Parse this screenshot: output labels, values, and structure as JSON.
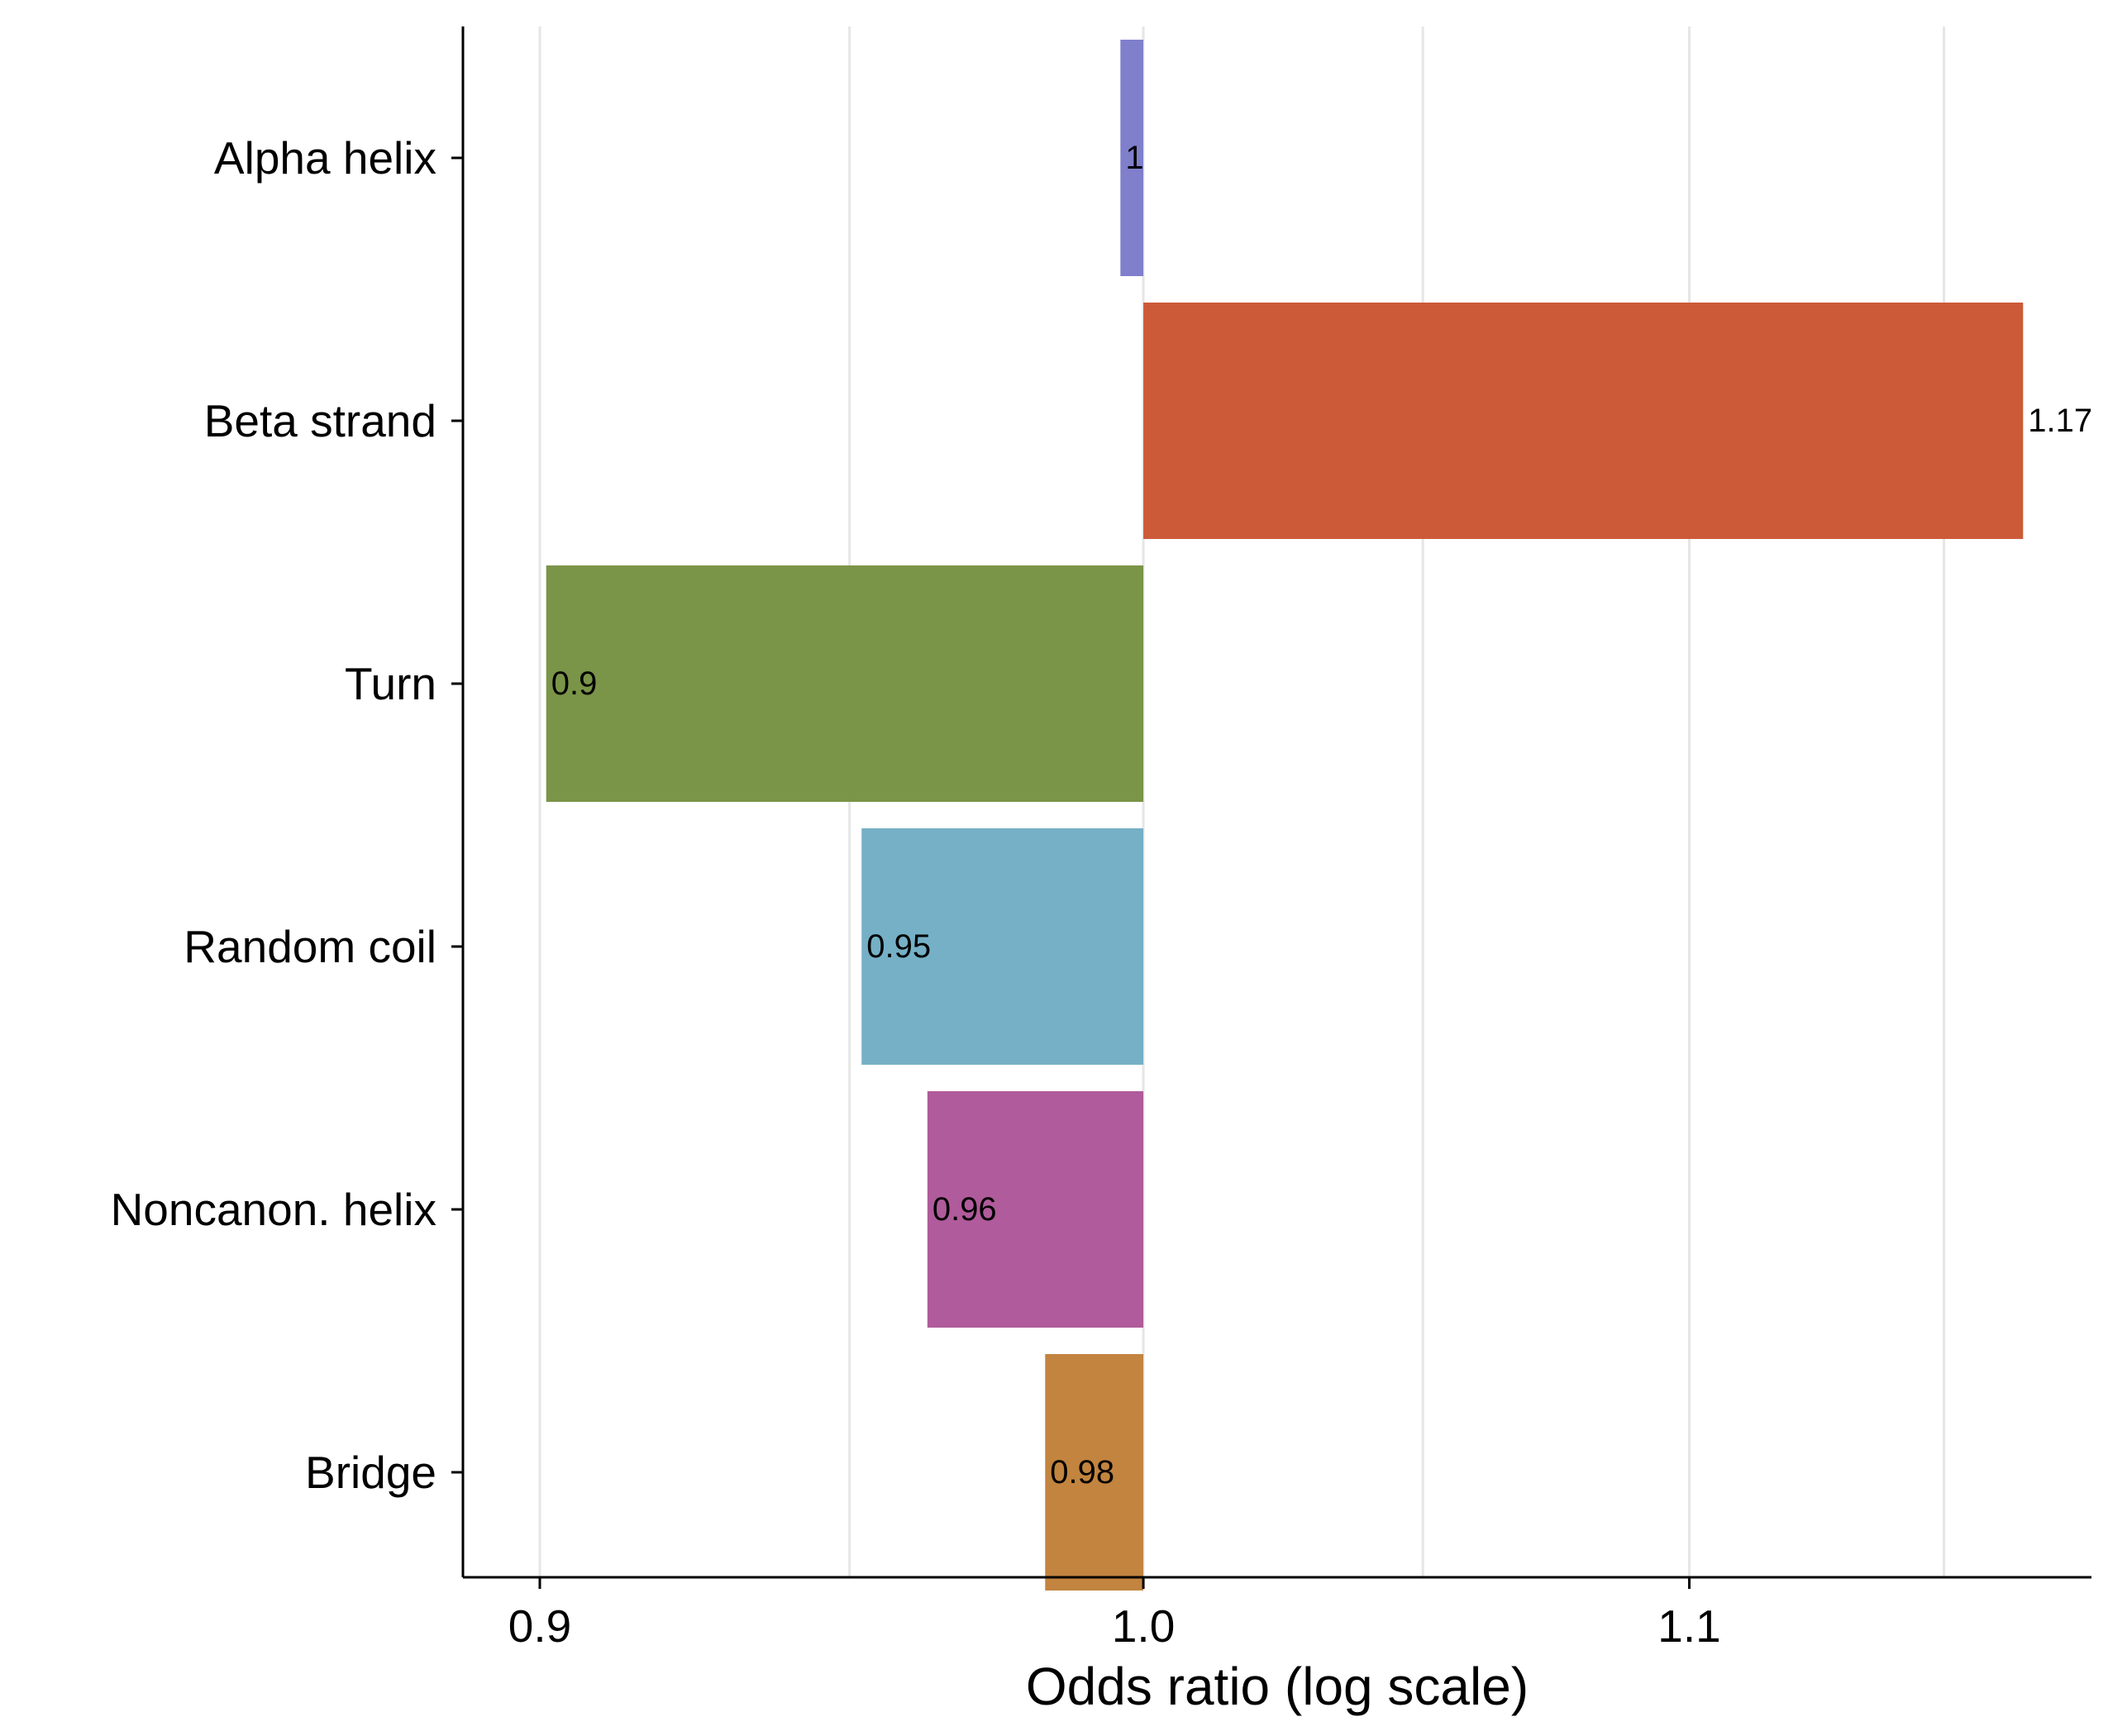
{
  "chart_data": {
    "type": "bar",
    "orientation": "horizontal",
    "baseline": 1.0,
    "xscale": "log",
    "xlabel": "Odds ratio (log scale)",
    "ylabel": "",
    "xlim": [
      0.888,
      1.18
    ],
    "xticks": [
      0.9,
      1.0,
      1.1
    ],
    "xtick_labels": [
      "0.9",
      "1.0",
      "1.1"
    ],
    "minor_gridlines": [
      0.95,
      1.05,
      1.15
    ],
    "grid": "vertical",
    "legend": "none",
    "categories": [
      "Alpha helix",
      "Beta strand",
      "Turn",
      "Random coil",
      "Noncanon. helix",
      "Bridge"
    ],
    "values": [
      0.996,
      1.166,
      0.901,
      0.952,
      0.963,
      0.983
    ],
    "data_labels": [
      "1",
      "1.17",
      "0.9",
      "0.95",
      "0.96",
      "0.98"
    ],
    "colors": [
      "#7f7fcc",
      "#cc5a38",
      "#7a9448",
      "#75b0c6",
      "#b05b9b",
      "#c2843f"
    ]
  }
}
